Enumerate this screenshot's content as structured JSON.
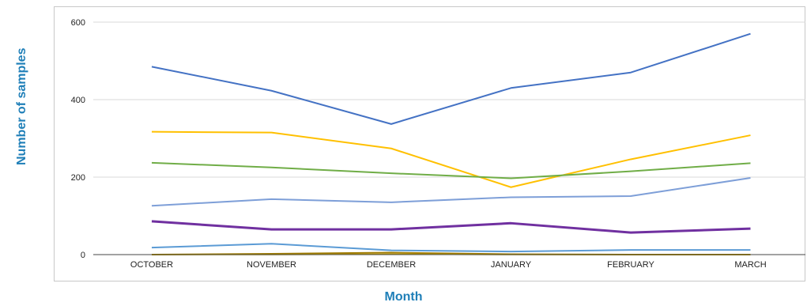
{
  "chart_data": {
    "type": "line",
    "title": "",
    "xlabel": "Month",
    "ylabel": "Number of samples",
    "categories": [
      "OCTOBER",
      "NOVEMBER",
      "DECEMBER",
      "JANUARY",
      "FEBRUARY",
      "MARCH"
    ],
    "ylim": [
      0,
      600
    ],
    "yticks": [
      0,
      200,
      400,
      600
    ],
    "grid": true,
    "legend": "none",
    "series": [
      {
        "color": "#4472c4",
        "width": 2,
        "values": [
          485,
          423,
          337,
          430,
          470,
          570
        ]
      },
      {
        "color": "#ffc000",
        "width": 2,
        "values": [
          317,
          315,
          274,
          174,
          246,
          308
        ]
      },
      {
        "color": "#70ad47",
        "width": 2,
        "values": [
          237,
          225,
          210,
          197,
          215,
          236
        ]
      },
      {
        "color": "#7e9fd8",
        "width": 2,
        "values": [
          126,
          143,
          135,
          148,
          151,
          198
        ]
      },
      {
        "color": "#7030a0",
        "width": 3,
        "values": [
          86,
          65,
          65,
          81,
          57,
          67
        ]
      },
      {
        "color": "#5b9bd5",
        "width": 2,
        "values": [
          18,
          28,
          11,
          8,
          12,
          12
        ]
      },
      {
        "color": "#9e7a00",
        "width": 2,
        "values": [
          0,
          2,
          5,
          1,
          0,
          0
        ]
      },
      {
        "color": "#c9a400",
        "width": 1.5,
        "values": [
          0,
          0,
          1,
          0,
          0,
          0
        ]
      }
    ]
  }
}
